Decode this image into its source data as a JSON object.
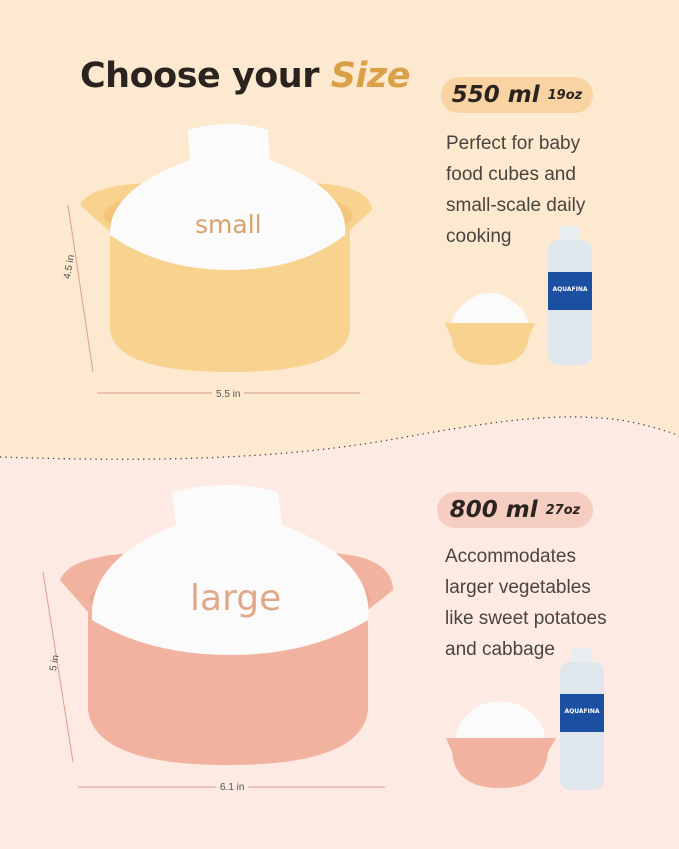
{
  "heading": {
    "prefix": "Choose your",
    "accent": "Size"
  },
  "colors": {
    "top_bg": "#fde9cf",
    "bottom_bg": "#fdeae3",
    "accent": "#d9a047",
    "small_pill": "#f9d3a2",
    "large_pill": "#f5cdc1",
    "small_bowl": "#f8d38f",
    "large_bowl": "#f1b3a0"
  },
  "small": {
    "bowl_label": "small",
    "capacity": "550 ml",
    "capacity_oz": "19oz",
    "description": [
      "Perfect for baby",
      "food cubes and",
      "small-scale daily",
      "cooking"
    ],
    "height": "4.5 in",
    "width": "5.5 in",
    "bottle_brand": "AQUAFINA"
  },
  "large": {
    "bowl_label": "large",
    "capacity": "800 ml",
    "capacity_oz": "27oz",
    "description": [
      "Accommodates",
      "larger vegetables",
      "like sweet potatoes",
      "and cabbage"
    ],
    "height": "5 in",
    "width": "6.1 in",
    "bottle_brand": "AQUAFINA"
  }
}
